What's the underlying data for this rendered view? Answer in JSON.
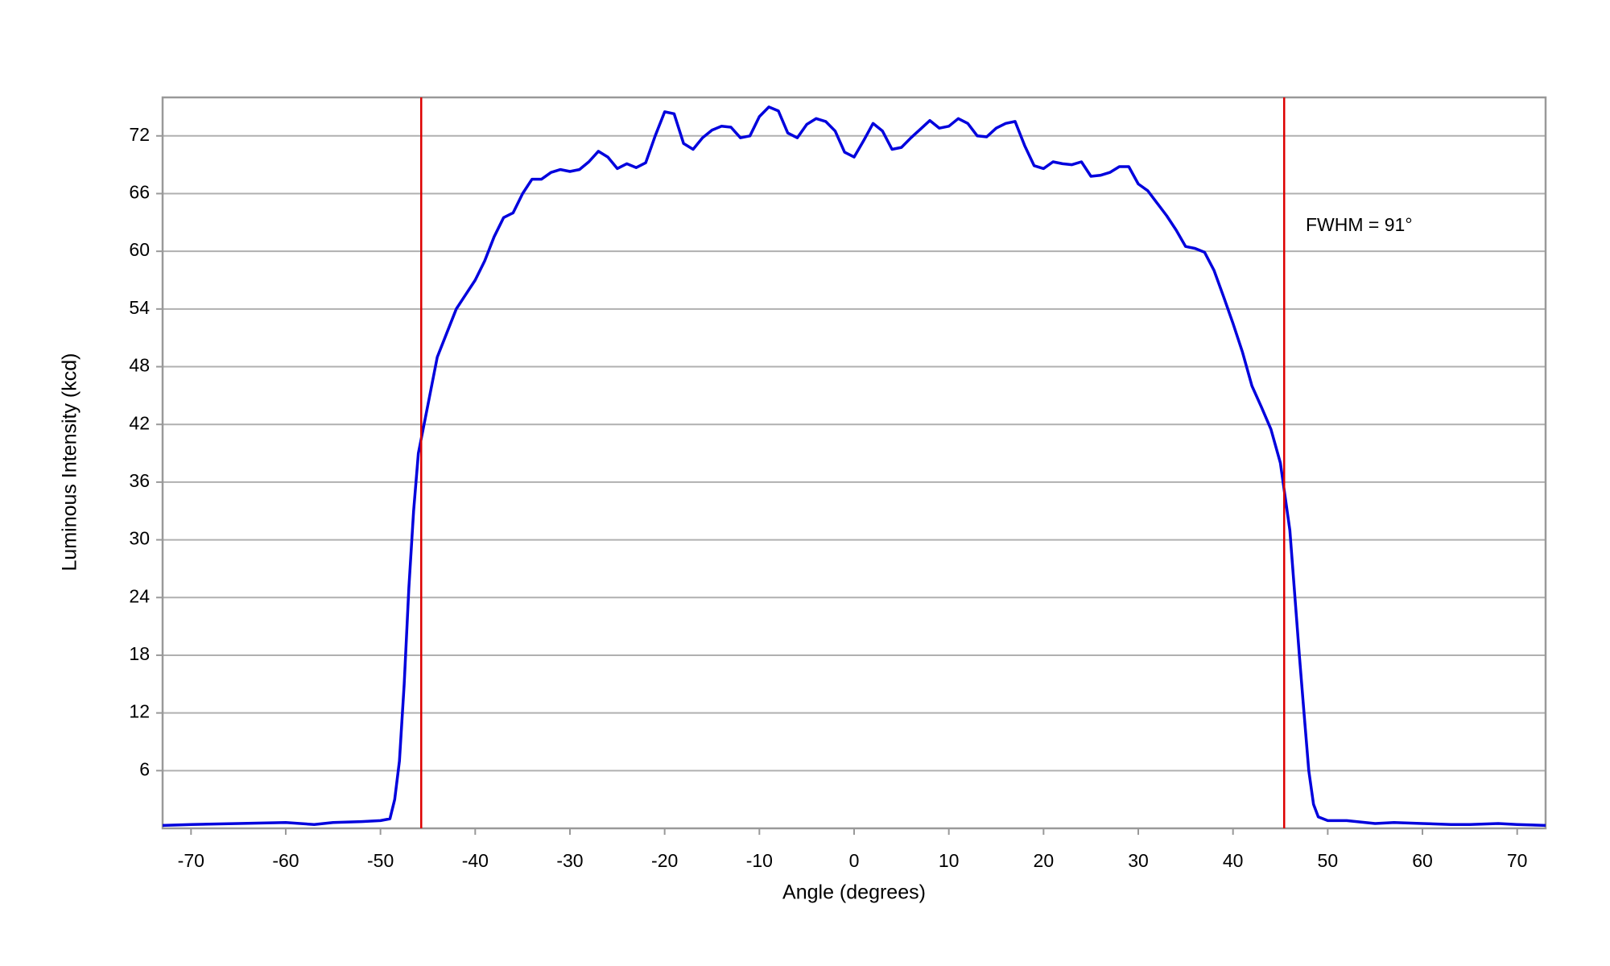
{
  "chart_data": {
    "type": "line",
    "xlabel": "Angle (degrees)",
    "ylabel": "Luminous Intensity (kcd)",
    "annotation": "FWHM = 91°",
    "color": "#0000dd",
    "x": [
      -73,
      -70,
      -65,
      -60,
      -57,
      -55,
      -52,
      -50,
      -49,
      -48.5,
      -48,
      -47.5,
      -47,
      -46.5,
      -46,
      -45,
      -44,
      -43,
      -42,
      -41,
      -40,
      -39,
      -38,
      -37,
      -36,
      -35,
      -34,
      -33,
      -32,
      -31,
      -30,
      -29,
      -28,
      -27,
      -26,
      -25,
      -24,
      -23,
      -22,
      -21,
      -20,
      -19,
      -18,
      -17,
      -16,
      -15,
      -14,
      -13,
      -12,
      -11,
      -10,
      -9,
      -8,
      -7,
      -6,
      -5,
      -4,
      -3,
      -2,
      -1,
      0,
      1,
      2,
      3,
      4,
      5,
      6,
      7,
      8,
      9,
      10,
      11,
      12,
      13,
      14,
      15,
      16,
      17,
      18,
      19,
      20,
      21,
      22,
      23,
      24,
      25,
      26,
      27,
      28,
      29,
      30,
      31,
      32,
      33,
      34,
      35,
      36,
      37,
      38,
      39,
      40,
      41,
      42,
      43,
      44,
      45,
      46,
      47,
      47.5,
      48,
      48.5,
      49,
      50,
      52,
      55,
      57,
      60,
      63,
      65,
      68,
      70,
      73
    ],
    "values": [
      0.3,
      0.4,
      0.5,
      0.6,
      0.4,
      0.6,
      0.7,
      0.8,
      1.0,
      3,
      7,
      15,
      25,
      33,
      39,
      44,
      49,
      51.5,
      54,
      55.5,
      57,
      59,
      61.5,
      63.5,
      64,
      66,
      67.5,
      67.5,
      68.2,
      68.5,
      68.3,
      68.5,
      69.3,
      70.4,
      69.8,
      68.6,
      69.1,
      68.7,
      69.2,
      72,
      74.5,
      74.3,
      71.2,
      70.6,
      71.8,
      72.6,
      73,
      72.9,
      71.8,
      72,
      74,
      75,
      74.6,
      72.3,
      71.8,
      73.2,
      73.8,
      73.5,
      72.5,
      70.3,
      69.8,
      71.5,
      73.3,
      72.5,
      70.6,
      70.8,
      71.8,
      72.7,
      73.6,
      72.8,
      73,
      73.8,
      73.3,
      72,
      71.9,
      72.8,
      73.3,
      73.5,
      71,
      68.9,
      68.6,
      69.3,
      69.1,
      69,
      69.3,
      67.8,
      67.9,
      68.2,
      68.8,
      68.8,
      67,
      66.3,
      65,
      63.7,
      62.2,
      60.5,
      60.3,
      59.9,
      58,
      55.3,
      52.5,
      49.5,
      46,
      43.8,
      41.5,
      38,
      31,
      18,
      12,
      6,
      2.5,
      1.2,
      0.8,
      0.8,
      0.5,
      0.6,
      0.5,
      0.4,
      0.4,
      0.5,
      0.4,
      0.3
    ],
    "vlines": [
      -45.7,
      45.4
    ],
    "vline_color": "#dd0000",
    "xlim": [
      -73,
      73
    ],
    "xticks": [
      -70,
      -60,
      -50,
      -40,
      -30,
      -20,
      -10,
      0,
      10,
      20,
      30,
      40,
      50,
      60,
      70
    ],
    "ylim": [
      0,
      76
    ],
    "yticks": [
      6,
      12,
      18,
      24,
      30,
      36,
      42,
      48,
      54,
      60,
      66,
      72
    ],
    "grid": true
  }
}
